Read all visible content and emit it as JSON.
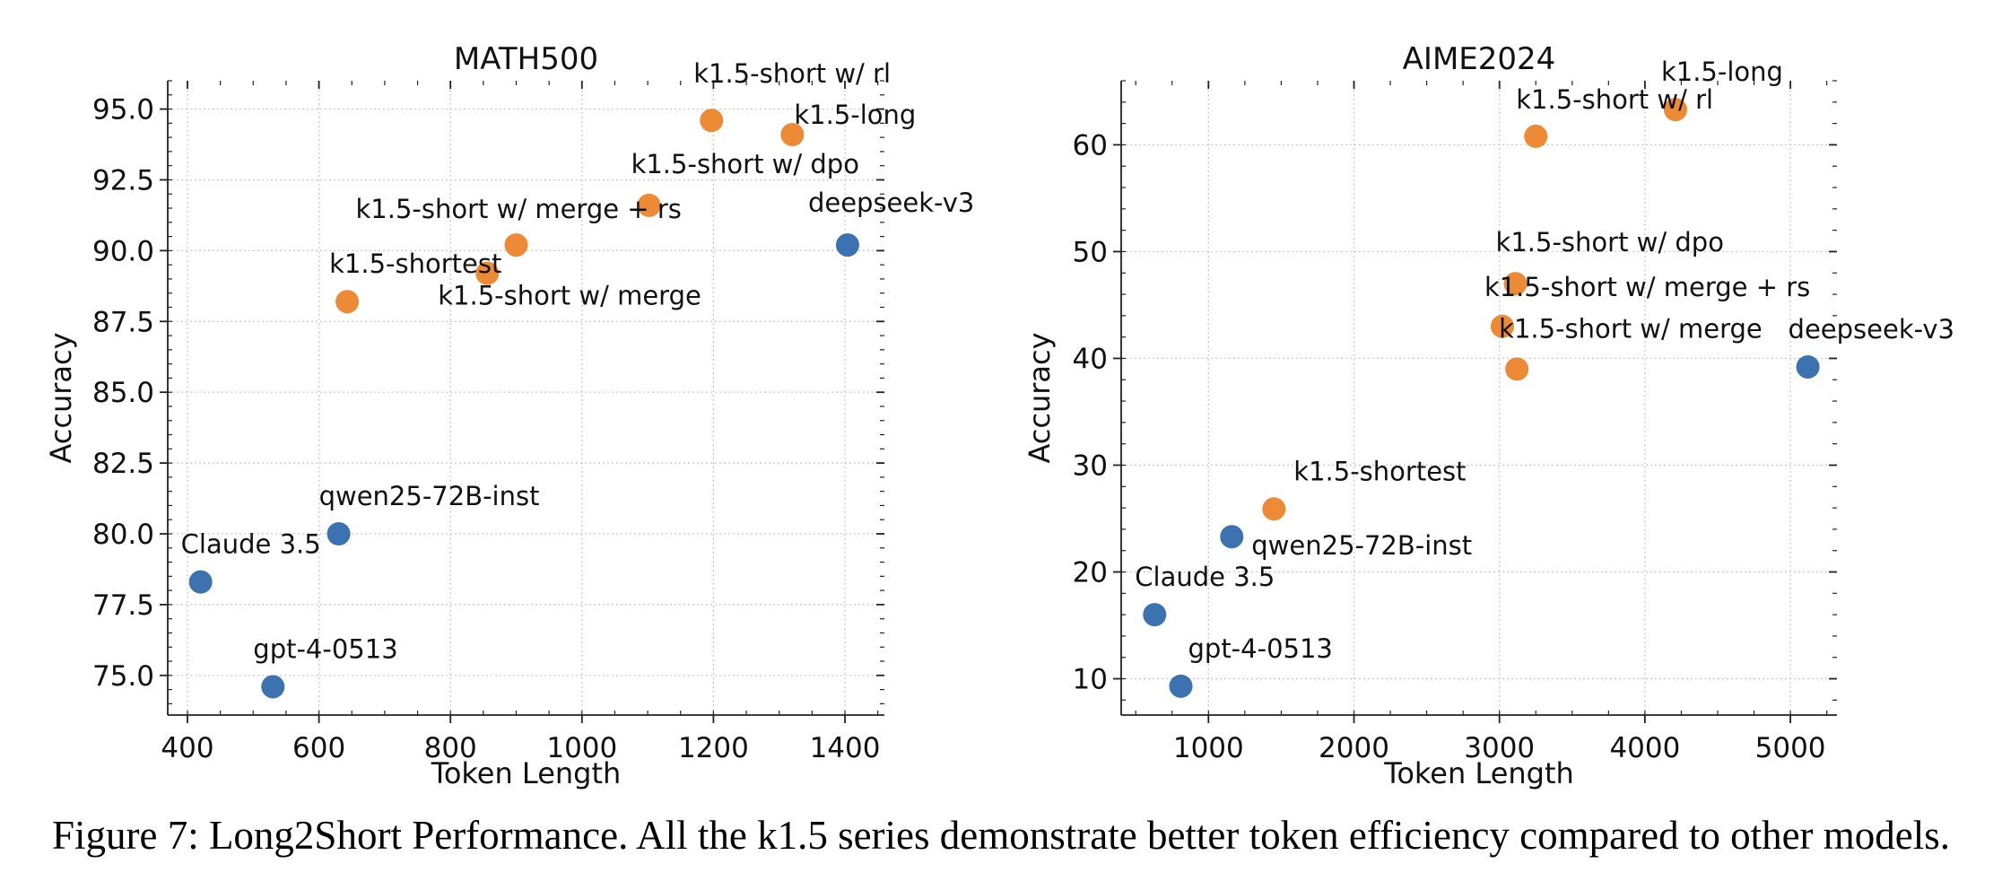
{
  "caption": "Figure 7: Long2Short Performance. All the k1.5 series demonstrate better token efficiency compared to other models.",
  "colors": {
    "k1.5": "#ED8A35",
    "baseline": "#3B72AF"
  },
  "chart_data": [
    {
      "type": "scatter",
      "title": "MATH500",
      "xlabel": "Token Length",
      "ylabel": "Accuracy",
      "xlim": [
        370,
        1460
      ],
      "ylim": [
        73.6,
        96.0
      ],
      "xticks": [
        400,
        600,
        800,
        1000,
        1200,
        1400
      ],
      "yticks": [
        "75.0",
        "77.5",
        "80.0",
        "82.5",
        "85.0",
        "87.5",
        "90.0",
        "92.5",
        "95.0"
      ],
      "grid": true,
      "points": [
        {
          "label": "k1.5-short w/ rl",
          "x": 1197,
          "y": 94.6,
          "group": "k1.5"
        },
        {
          "label": "k1.5-long",
          "x": 1320,
          "y": 94.1,
          "group": "k1.5"
        },
        {
          "label": "k1.5-short w/ dpo",
          "x": 1102,
          "y": 91.6,
          "group": "k1.5"
        },
        {
          "label": "k1.5-short w/ merge + rs",
          "x": 900,
          "y": 90.2,
          "group": "k1.5"
        },
        {
          "label": "k1.5-short w/ merge",
          "x": 856,
          "y": 89.2,
          "group": "k1.5"
        },
        {
          "label": "k1.5-shortest",
          "x": 643,
          "y": 88.2,
          "group": "k1.5"
        },
        {
          "label": "deepseek-v3",
          "x": 1404,
          "y": 90.2,
          "group": "baseline"
        },
        {
          "label": "qwen25-72B-inst",
          "x": 630,
          "y": 80.0,
          "group": "baseline"
        },
        {
          "label": "Claude 3.5",
          "x": 420,
          "y": 78.3,
          "group": "baseline"
        },
        {
          "label": "gpt-4-0513",
          "x": 530,
          "y": 74.6,
          "group": "baseline"
        }
      ]
    },
    {
      "type": "scatter",
      "title": "AIME2024",
      "xlabel": "Token Length",
      "ylabel": "Accuracy",
      "xlim": [
        400,
        5320
      ],
      "ylim": [
        6.6,
        66.0
      ],
      "xticks": [
        1000,
        2000,
        3000,
        4000,
        5000
      ],
      "yticks": [
        "10",
        "20",
        "30",
        "40",
        "50",
        "60"
      ],
      "grid": true,
      "points": [
        {
          "label": "k1.5-long",
          "x": 4210,
          "y": 63.3,
          "group": "k1.5"
        },
        {
          "label": "k1.5-short w/ rl",
          "x": 3250,
          "y": 60.8,
          "group": "k1.5"
        },
        {
          "label": "k1.5-short w/ dpo",
          "x": 3110,
          "y": 47.0,
          "group": "k1.5"
        },
        {
          "label": "k1.5-short w/ merge + rs",
          "x": 3020,
          "y": 43.0,
          "group": "k1.5"
        },
        {
          "label": "k1.5-short w/ merge",
          "x": 3120,
          "y": 39.0,
          "group": "k1.5"
        },
        {
          "label": "k1.5-shortest",
          "x": 1450,
          "y": 25.9,
          "group": "k1.5"
        },
        {
          "label": "deepseek-v3",
          "x": 5120,
          "y": 39.2,
          "group": "baseline"
        },
        {
          "label": "qwen25-72B-inst",
          "x": 1160,
          "y": 23.3,
          "group": "baseline"
        },
        {
          "label": "Claude 3.5",
          "x": 630,
          "y": 16.0,
          "group": "baseline"
        },
        {
          "label": "gpt-4-0513",
          "x": 810,
          "y": 9.3,
          "group": "baseline"
        }
      ]
    }
  ]
}
